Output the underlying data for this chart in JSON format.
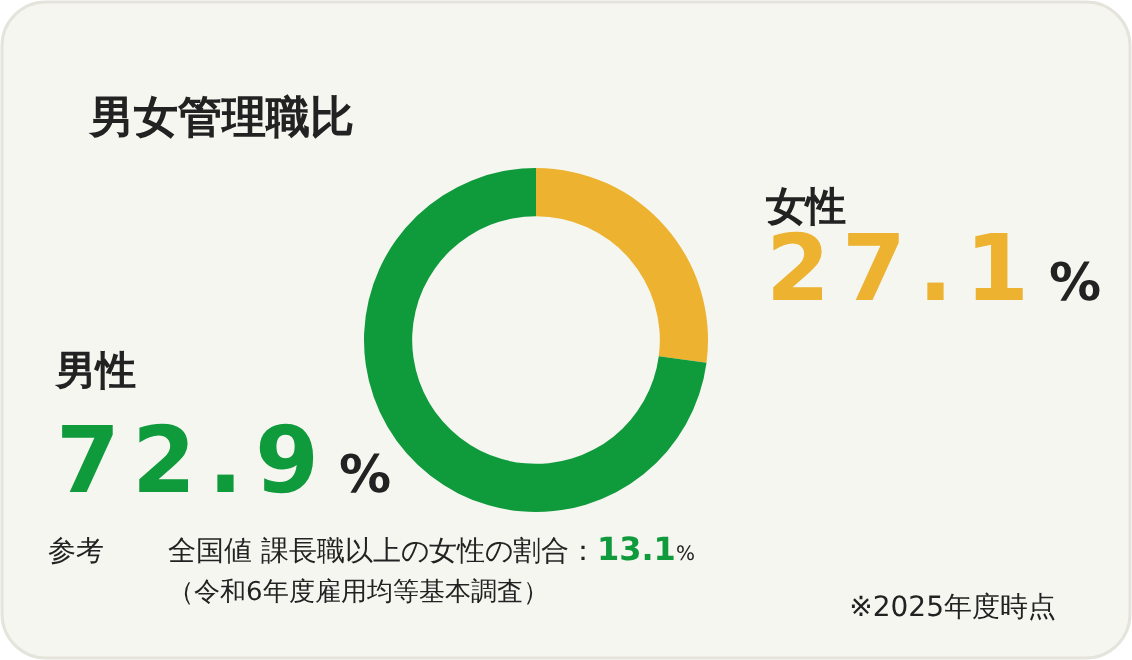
{
  "chart_data": {
    "type": "donut",
    "title": "男女管理職比",
    "categories": [
      "女性",
      "男性"
    ],
    "values": [
      27.1,
      72.9
    ],
    "colors": [
      "#ecb230",
      "#0f9a3c"
    ],
    "value_labels": [
      "27.1%",
      "72.9%"
    ],
    "annotations": [
      "参考",
      "全国値 課長職以上の女性の割合：13.1%",
      "（令和6年度雇用均等基本調査）",
      "※2025年度時点"
    ]
  }
}
